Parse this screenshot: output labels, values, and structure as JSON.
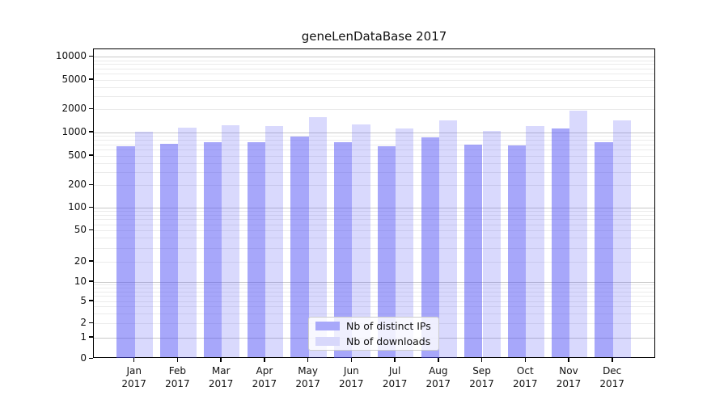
{
  "title": "geneLenDataBase 2017",
  "legend": {
    "items": [
      {
        "label": "Nb of distinct IPs"
      },
      {
        "label": "Nb of downloads"
      }
    ]
  },
  "colors": {
    "ips_bar": "rgba(80,80,245,0.50)",
    "downloads_bar": "rgba(80,80,245,0.22)",
    "ips_swatch": "#a8a8fa",
    "downloads_swatch": "#d8d8fb",
    "grid_major": "#c9c9c9",
    "grid_minor": "#ebebeb",
    "spine": "#000000",
    "text": "#111111"
  },
  "chart_data": {
    "type": "bar",
    "title": "geneLenDataBase 2017",
    "categories": [
      "Jan 2017",
      "Feb 2017",
      "Mar 2017",
      "Apr 2017",
      "May 2017",
      "Jun 2017",
      "Jul 2017",
      "Aug 2017",
      "Sep 2017",
      "Oct 2017",
      "Nov 2017",
      "Dec 2017"
    ],
    "series": [
      {
        "name": "Nb of distinct IPs",
        "values": [
          670,
          705,
          750,
          740,
          885,
          745,
          660,
          870,
          690,
          680,
          1115,
          740
        ]
      },
      {
        "name": "Nb of downloads",
        "values": [
          1020,
          1150,
          1240,
          1210,
          1580,
          1270,
          1110,
          1450,
          1050,
          1210,
          1930,
          1430
        ]
      }
    ],
    "xlabel": "",
    "ylabel": "",
    "yscale": "symlog",
    "yticks": [
      0,
      1,
      2,
      5,
      10,
      20,
      50,
      100,
      200,
      500,
      1000,
      2000,
      5000,
      10000
    ],
    "ylim": [
      0,
      12600
    ],
    "grid": true,
    "legend_position": "lower center"
  }
}
